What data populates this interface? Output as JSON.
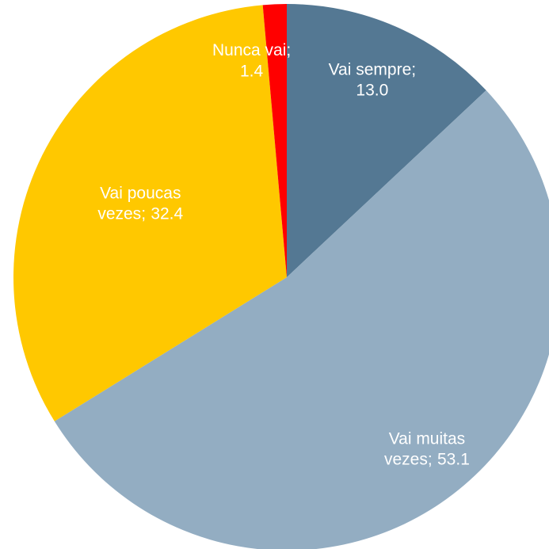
{
  "chart_data": {
    "type": "pie",
    "categories": [
      "Vai sempre",
      "Vai muitas vezes",
      "Vai poucas vezes",
      "Nunca vai"
    ],
    "values": [
      13.0,
      53.1,
      32.4,
      1.4
    ],
    "value_labels": [
      "13.0",
      "53.1",
      "32.4",
      "1.4"
    ],
    "label_separator": ";",
    "colors": [
      "#547893",
      "#93adc2",
      "#ffc800",
      "#ff0000"
    ],
    "start_angle": 0,
    "direction": "clockwise"
  }
}
